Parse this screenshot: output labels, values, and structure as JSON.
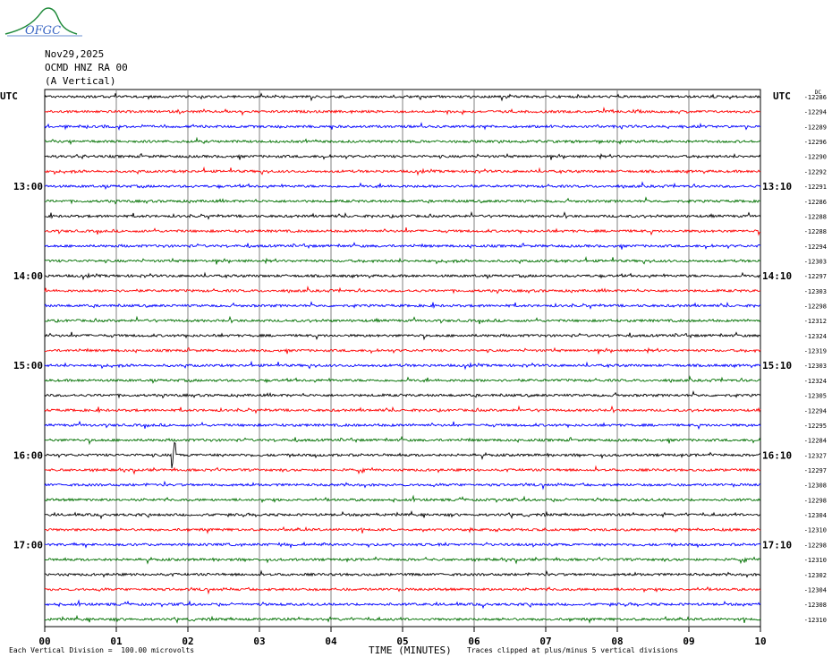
{
  "header": {
    "logo_text": "OFGC",
    "date": "Nov29,2025",
    "station": "OCMD HNZ RA 00",
    "component": "(A Vertical)"
  },
  "footer": {
    "scale_note": "Each Vertical Division =  100.00 microvolts",
    "x_axis_label": "TIME (MINUTES)",
    "clip_note": "Traces clipped at plus/minus 5 vertical divisions"
  },
  "colors": {
    "trace_cycle": [
      "#000000",
      "#ff0000",
      "#0000ff",
      "#007000"
    ],
    "grid": "#808080"
  },
  "chart_data": {
    "type": "line",
    "title": "",
    "xlabel": "TIME (MINUTES)",
    "ylabel": "",
    "xlim": [
      0,
      10
    ],
    "x_ticks": [
      "00",
      "01",
      "02",
      "03",
      "04",
      "05",
      "06",
      "07",
      "08",
      "09",
      "10"
    ],
    "left_utc_label": "UTC",
    "right_utc_label": "UTC",
    "right_header_dc": "DC",
    "left_hour_labels": [
      {
        "row": 6,
        "label": "13:00"
      },
      {
        "row": 12,
        "label": "14:00"
      },
      {
        "row": 18,
        "label": "15:00"
      },
      {
        "row": 24,
        "label": "16:00"
      },
      {
        "row": 30,
        "label": "17:00"
      }
    ],
    "right_hour_labels": [
      {
        "row": 6,
        "label": "13:10"
      },
      {
        "row": 12,
        "label": "14:10"
      },
      {
        "row": 18,
        "label": "15:10"
      },
      {
        "row": 24,
        "label": "16:10"
      },
      {
        "row": 30,
        "label": "17:10"
      }
    ],
    "trace_offsets": [
      "-12286",
      "-12294",
      "-12289",
      "-12296",
      "-12290",
      "-12292",
      "-12291",
      "-12286",
      "-12288",
      "-12288",
      "-12294",
      "-12303",
      "-12297",
      "-12303",
      "-12298",
      "-12312",
      "-12324",
      "-12319",
      "-12303",
      "-12324",
      "-12305",
      "-12294",
      "-12295",
      "-12284",
      "-12327",
      "-12297",
      "-12308",
      "-12298",
      "-12304",
      "-12310",
      "-12298",
      "-12310",
      "-12302",
      "-12304",
      "-12308",
      "-12310"
    ]
  }
}
